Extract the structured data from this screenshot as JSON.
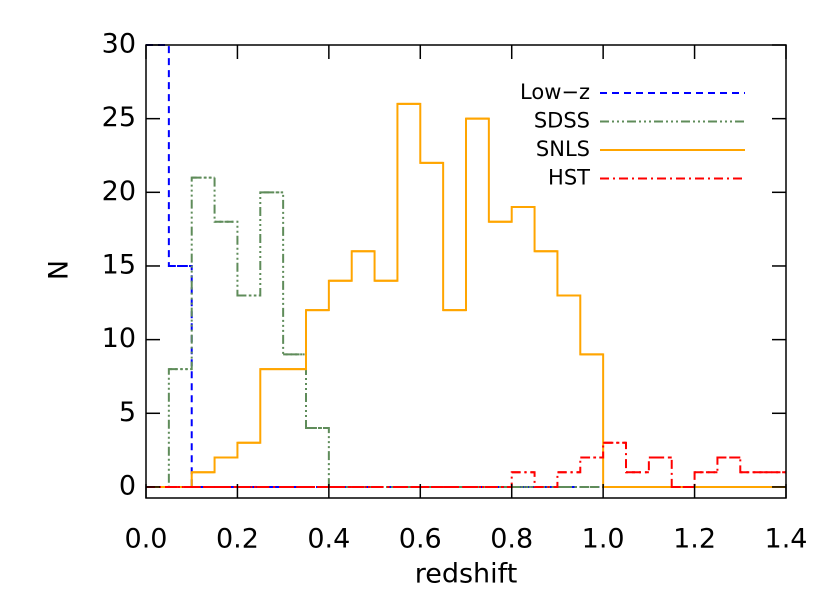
{
  "chart_data": {
    "type": "histogram",
    "xlabel": "redshift",
    "ylabel": "N",
    "bins": [
      0.0,
      0.05,
      0.1,
      0.15,
      0.2,
      0.25,
      0.3,
      0.35,
      0.4,
      0.45,
      0.5,
      0.55,
      0.6,
      0.65,
      0.7,
      0.75,
      0.8,
      0.85,
      0.9,
      0.95,
      1.0,
      1.05,
      1.1,
      1.15,
      1.2,
      1.25,
      1.3,
      1.35,
      1.4
    ],
    "series": [
      {
        "name": "Low−z",
        "color": "#0000ff",
        "dash": "7,5",
        "values": [
          30,
          15,
          0,
          0,
          0,
          0,
          0,
          0,
          0,
          0,
          0,
          0,
          0,
          0,
          0,
          0,
          0,
          0,
          0,
          0,
          0,
          0,
          0,
          0,
          0,
          0,
          0,
          0
        ]
      },
      {
        "name": "SDSS",
        "color": "#5f8c5a",
        "dash": "9,3,2,3,2,3,2,3",
        "values": [
          0,
          8,
          21,
          18,
          13,
          20,
          9,
          4,
          0,
          0,
          0,
          0,
          0,
          0,
          0,
          0,
          0,
          0,
          0,
          0,
          0,
          0,
          0,
          0,
          0,
          0,
          0,
          0
        ]
      },
      {
        "name": "SNLS",
        "color": "#ffa500",
        "dash": "none",
        "values": [
          0,
          0,
          1,
          2,
          3,
          8,
          8,
          12,
          14,
          16,
          14,
          26,
          22,
          12,
          25,
          18,
          19,
          16,
          13,
          9,
          0,
          0,
          0,
          0,
          0,
          0,
          0,
          0
        ]
      },
      {
        "name": "HST",
        "color": "#ff0000",
        "dash": "9,4,2,4",
        "values": [
          0,
          0,
          0,
          0,
          0,
          0,
          0,
          0,
          0,
          0,
          0,
          0,
          0,
          0,
          0,
          0,
          1,
          0,
          1,
          2,
          3,
          1,
          2,
          0,
          1,
          2,
          1,
          1
        ]
      }
    ],
    "xlim": [
      0.0,
      1.4
    ],
    "ylim": [
      -0.75,
      30
    ],
    "xticks": [
      {
        "value": 0.0,
        "label": "0.0"
      },
      {
        "value": 0.2,
        "label": "0.2"
      },
      {
        "value": 0.4,
        "label": "0.4"
      },
      {
        "value": 0.6,
        "label": "0.6"
      },
      {
        "value": 0.8,
        "label": "0.8"
      },
      {
        "value": 1.0,
        "label": "1.0"
      },
      {
        "value": 1.2,
        "label": "1.2"
      },
      {
        "value": 1.4,
        "label": "1.4"
      }
    ],
    "yticks": [
      0,
      5,
      10,
      15,
      20,
      25,
      30
    ],
    "legend": "upper right"
  }
}
